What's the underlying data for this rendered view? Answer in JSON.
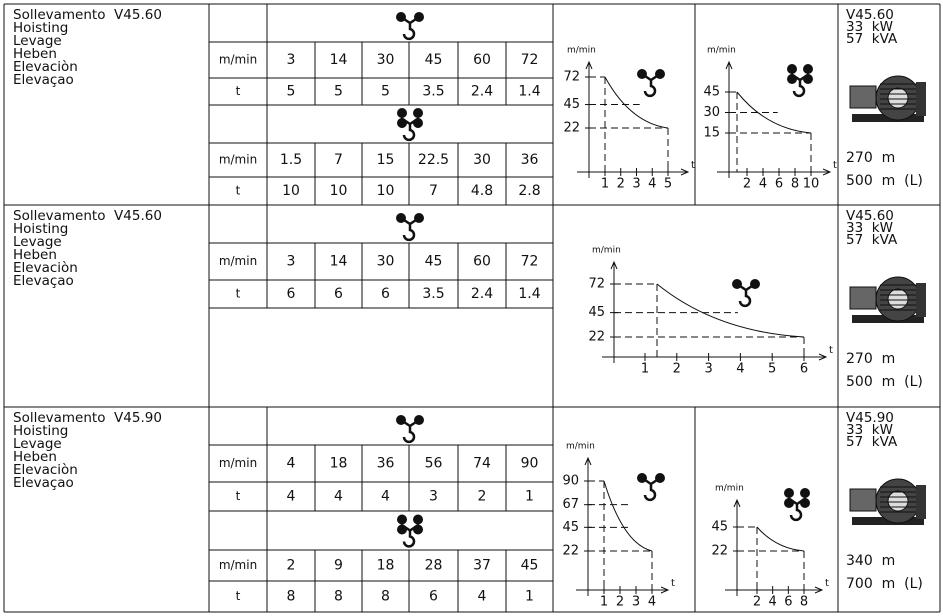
{
  "sections": [
    {
      "names": [
        "Sollevamento  V45.60",
        "Hoisting",
        "Levage",
        "Heben",
        "Elevaciòn",
        "Elevaçao"
      ],
      "tables": [
        {
          "speed_label": "m/min",
          "speed": [
            "3",
            "14",
            "30",
            "45",
            "60",
            "72"
          ],
          "load_label": "t",
          "load": [
            "5",
            "5",
            "5",
            "3.5",
            "2.4",
            "1.4"
          ]
        },
        {
          "speed_label": "m/min",
          "speed": [
            "1.5",
            "7",
            "15",
            "22.5",
            "30",
            "36"
          ],
          "load_label": "t",
          "load": [
            "10",
            "10",
            "10",
            "7",
            "4.8",
            "2.8"
          ]
        }
      ],
      "charts": [
        {
          "y_unit": "m/min",
          "x_unit": "t",
          "yticks": [
            "72",
            "45",
            "22"
          ],
          "xticks": [
            "1",
            "2",
            "3",
            "4",
            "5"
          ]
        },
        {
          "y_unit": "m/min",
          "x_unit": "t",
          "yticks": [
            "45",
            "30",
            "15"
          ],
          "xticks": [
            "2",
            "4",
            "6",
            "8",
            "10"
          ]
        }
      ],
      "specs": [
        "V45.60",
        "33  kW",
        "57  kVA"
      ],
      "lengths": [
        "270  m",
        "500  m  (L)"
      ]
    },
    {
      "names": [
        "Sollevamento  V45.60",
        "Hoisting",
        "Levage",
        "Heben",
        "Elevaciòn",
        "Elevaçao"
      ],
      "tables": [
        {
          "speed_label": "m/min",
          "speed": [
            "3",
            "14",
            "30",
            "45",
            "60",
            "72"
          ],
          "load_label": "t",
          "load": [
            "6",
            "6",
            "6",
            "3.5",
            "2.4",
            "1.4"
          ]
        }
      ],
      "charts": [
        {
          "y_unit": "m/min",
          "x_unit": "t",
          "yticks": [
            "72",
            "45",
            "22"
          ],
          "xticks": [
            "1",
            "2",
            "3",
            "4",
            "5",
            "6"
          ]
        }
      ],
      "specs": [
        "V45.60",
        "33  kW",
        "57  kVA"
      ],
      "lengths": [
        "270  m",
        "500  m  (L)"
      ]
    },
    {
      "names": [
        "Sollevamento  V45.90",
        "Hoisting",
        "Levage",
        "Heben",
        "Elevaciòn",
        "Elevaçao"
      ],
      "tables": [
        {
          "speed_label": "m/min",
          "speed": [
            "4",
            "18",
            "36",
            "56",
            "74",
            "90"
          ],
          "load_label": "t",
          "load": [
            "4",
            "4",
            "4",
            "3",
            "2",
            "1"
          ]
        },
        {
          "speed_label": "m/min",
          "speed": [
            "2",
            "9",
            "18",
            "28",
            "37",
            "45"
          ],
          "load_label": "t",
          "load": [
            "8",
            "8",
            "8",
            "6",
            "4",
            "1"
          ]
        }
      ],
      "charts": [
        {
          "y_unit": "m/min",
          "x_unit": "t",
          "yticks": [
            "90",
            "67",
            "45",
            "22"
          ],
          "xticks": [
            "1",
            "2",
            "3",
            "4"
          ]
        },
        {
          "y_unit": "m/min",
          "x_unit": "t",
          "yticks": [
            "45",
            "22"
          ],
          "xticks": [
            "2",
            "4",
            "6",
            "8"
          ]
        }
      ],
      "specs": [
        "V45.90",
        "33  kW",
        "57  kVA"
      ],
      "lengths": [
        "340  m",
        "700  m  (L)"
      ]
    }
  ]
}
